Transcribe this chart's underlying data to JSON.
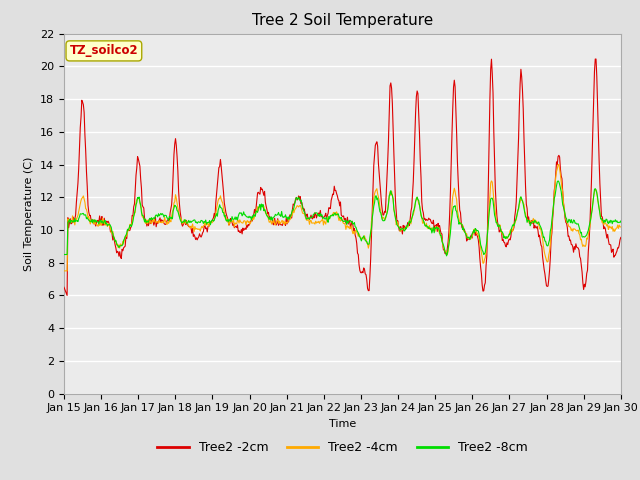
{
  "title": "Tree 2 Soil Temperature",
  "xlabel": "Time",
  "ylabel": "Soil Temperature (C)",
  "ylim": [
    0,
    22
  ],
  "yticks": [
    0,
    2,
    4,
    6,
    8,
    10,
    12,
    14,
    16,
    18,
    20,
    22
  ],
  "x_labels": [
    "Jan 15",
    "Jan 16",
    "Jan 17",
    "Jan 18",
    "Jan 19",
    "Jan 20",
    "Jan 21",
    "Jan 22",
    "Jan 23",
    "Jan 24",
    "Jan 25",
    "Jan 26",
    "Jan 27",
    "Jan 28",
    "Jan 29",
    "Jan 30"
  ],
  "annotation_text": "TZ_soilco2",
  "annotation_box_color": "#ffffcc",
  "annotation_text_color": "#cc0000",
  "annotation_border_color": "#aaa800",
  "series_colors": [
    "#dd0000",
    "#ffaa00",
    "#00dd00"
  ],
  "series_labels": [
    "Tree2 -2cm",
    "Tree2 -4cm",
    "Tree2 -8cm"
  ],
  "background_color": "#e0e0e0",
  "plot_bg_color": "#ebebeb",
  "grid_color": "#ffffff",
  "title_fontsize": 11,
  "label_fontsize": 8,
  "tick_fontsize": 8
}
